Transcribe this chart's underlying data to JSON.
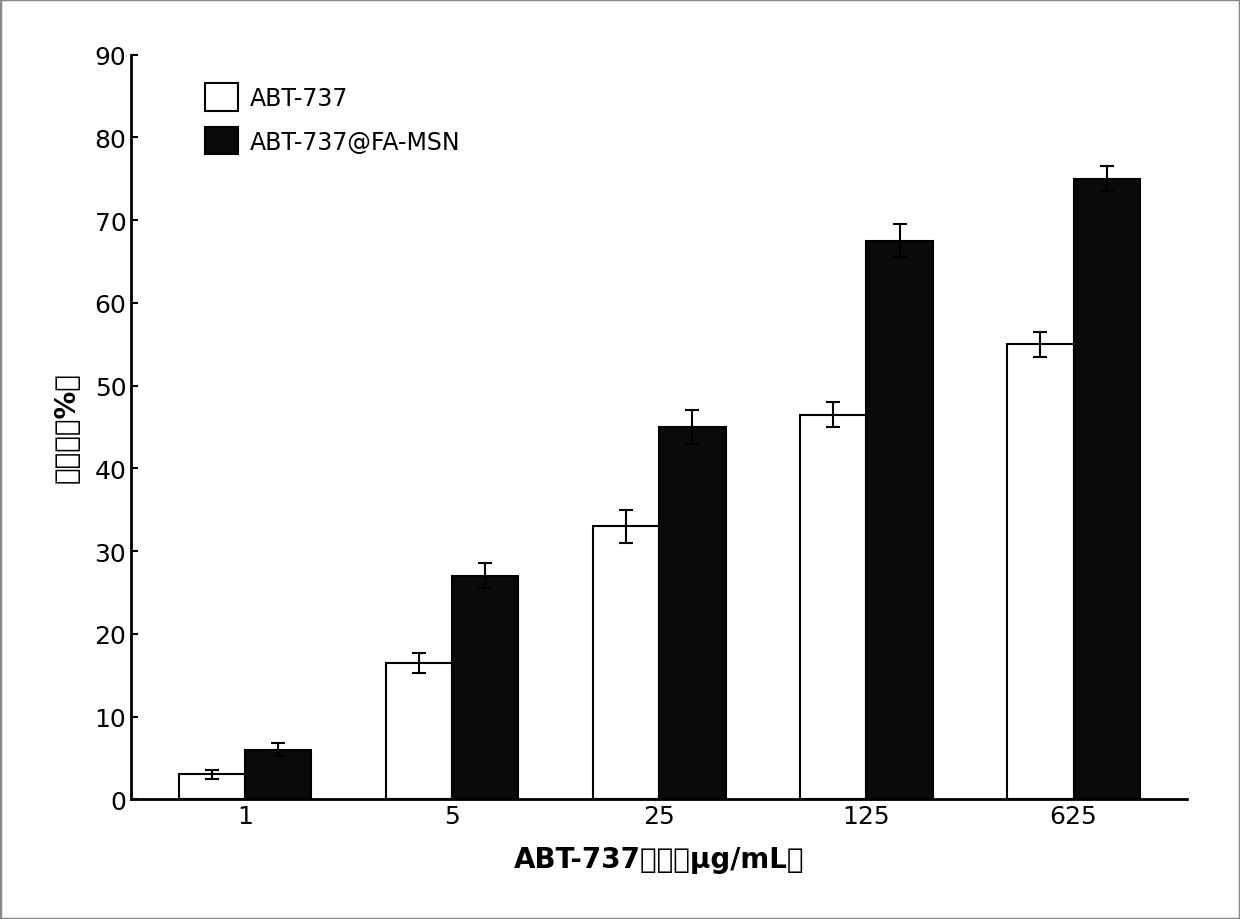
{
  "categories": [
    "1",
    "5",
    "25",
    "125",
    "625"
  ],
  "abt737_values": [
    3.0,
    16.5,
    33.0,
    46.5,
    55.0
  ],
  "abt737_errors": [
    0.5,
    1.2,
    2.0,
    1.5,
    1.5
  ],
  "fa_msn_values": [
    6.0,
    27.0,
    45.0,
    67.5,
    75.0
  ],
  "fa_msn_errors": [
    0.8,
    1.5,
    2.0,
    2.0,
    1.5
  ],
  "bar_width": 0.32,
  "abt737_color": "#ffffff",
  "fa_msn_color": "#0a0a0a",
  "bar_edgecolor": "#000000",
  "xlabel": "ABT-737浓度（μg/mL）",
  "ylabel": "抑瘤率（%）",
  "ylim": [
    0,
    90
  ],
  "yticks": [
    0,
    10,
    20,
    30,
    40,
    50,
    60,
    70,
    80,
    90
  ],
  "legend_labels": [
    "ABT-737",
    "ABT-737@FA-MSN"
  ],
  "label_fontsize": 20,
  "tick_fontsize": 18,
  "legend_fontsize": 17,
  "background_color": "#ffffff",
  "figure_background": "#ffffff",
  "border_color": "#cccccc"
}
